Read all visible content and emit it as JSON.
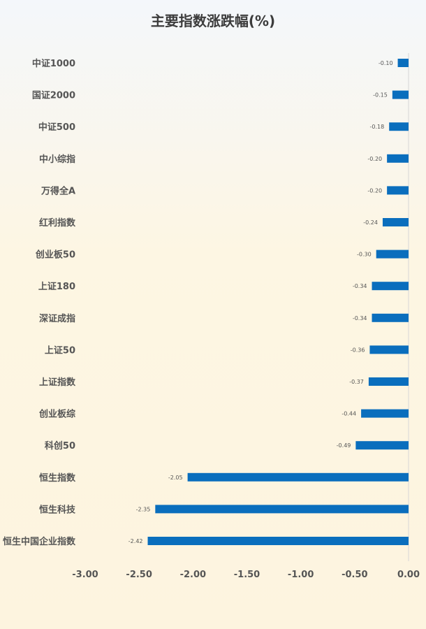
{
  "chart_data": {
    "type": "bar",
    "orientation": "horizontal",
    "title": "主要指数涨跌幅(%)",
    "xlabel": "",
    "ylabel": "",
    "categories": [
      "中证1000",
      "国证2000",
      "中证500",
      "中小综指",
      "万得全A",
      "红利指数",
      "创业板50",
      "上证180",
      "深证成指",
      "上证50",
      "上证指数",
      "创业板综",
      "科创50",
      "恒生指数",
      "恒生科技",
      "恒生中国企业指数"
    ],
    "values": [
      -0.1,
      -0.15,
      -0.18,
      -0.2,
      -0.2,
      -0.24,
      -0.3,
      -0.34,
      -0.34,
      -0.36,
      -0.37,
      -0.44,
      -0.49,
      -2.05,
      -2.35,
      -2.42
    ],
    "value_labels": [
      "-0.10",
      "-0.15",
      "-0.18",
      "-0.20",
      "-0.20",
      "-0.24",
      "-0.30",
      "-0.34",
      "-0.34",
      "-0.36",
      "-0.37",
      "-0.44",
      "-0.49",
      "-2.05",
      "-2.35",
      "-2.42"
    ],
    "xlim": [
      -3.0,
      0.0
    ],
    "x_ticks": [
      -3.0,
      -2.5,
      -2.0,
      -1.5,
      -1.0,
      -0.5,
      0.0
    ],
    "x_tick_labels": [
      "-3.00",
      "-2.50",
      "-2.00",
      "-1.50",
      "-1.00",
      "-0.50",
      "0.00"
    ],
    "bar_color": "#0a6ebd",
    "grid": false,
    "legend": "none"
  }
}
